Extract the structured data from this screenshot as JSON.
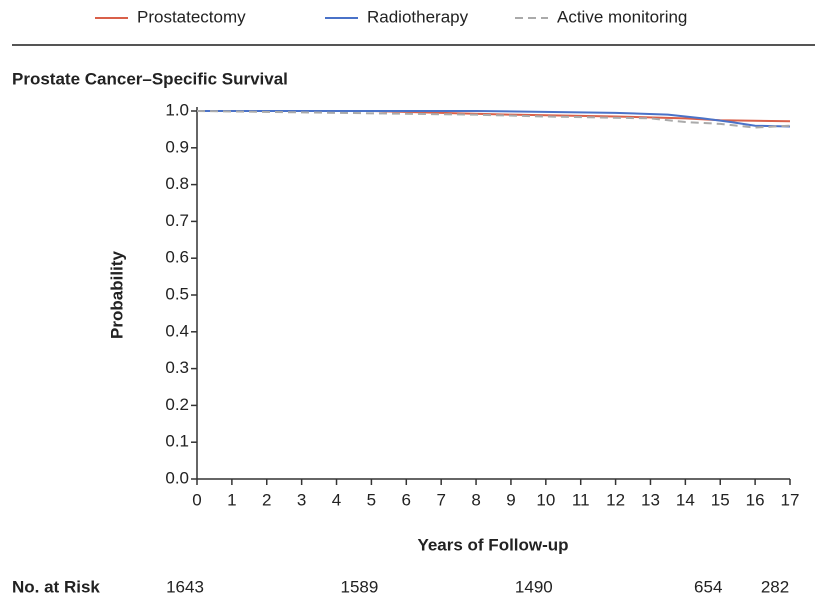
{
  "chart_data": {
    "type": "line",
    "title": "Prostate Cancer–Specific Survival",
    "x_label": "Years of Follow-up",
    "y_label": "Probability",
    "xlim": [
      0,
      17
    ],
    "ylim": [
      0,
      1
    ],
    "xticks": [
      0,
      1,
      2,
      3,
      4,
      5,
      6,
      7,
      8,
      9,
      10,
      11,
      12,
      13,
      14,
      15,
      16,
      17
    ],
    "yticks": [
      {
        "value": 0,
        "label": "0.0"
      },
      0.1,
      0.2,
      0.3,
      0.4,
      0.5,
      0.6,
      0.7,
      0.8,
      0.9,
      {
        "value": 1,
        "label": "1.0"
      }
    ],
    "series": [
      {
        "name": "Prostatectomy",
        "color": "#d9604a",
        "style": "solid",
        "x": [
          0,
          5,
          7,
          9,
          12,
          14,
          15,
          17
        ],
        "values": [
          1.0,
          1.0,
          0.995,
          0.99,
          0.985,
          0.98,
          0.975,
          0.972
        ]
      },
      {
        "name": "Radiotherapy",
        "color": "#4a72c8",
        "style": "solid",
        "x": [
          0,
          8,
          12,
          13.5,
          14.5,
          15.3,
          16,
          17
        ],
        "values": [
          1.0,
          1.0,
          0.995,
          0.99,
          0.98,
          0.97,
          0.96,
          0.958
        ]
      },
      {
        "name": "Active monitoring",
        "color": "#aaaaaa",
        "style": "dashed",
        "x": [
          0,
          4,
          8,
          10,
          13,
          14,
          15,
          16,
          17
        ],
        "values": [
          1.0,
          0.995,
          0.99,
          0.985,
          0.98,
          0.97,
          0.965,
          0.955,
          0.96
        ]
      }
    ],
    "at_risk": {
      "label": "No. at Risk",
      "x": [
        0,
        5,
        10,
        15,
        17
      ],
      "values": [
        1643,
        1589,
        1490,
        654,
        282
      ]
    }
  }
}
